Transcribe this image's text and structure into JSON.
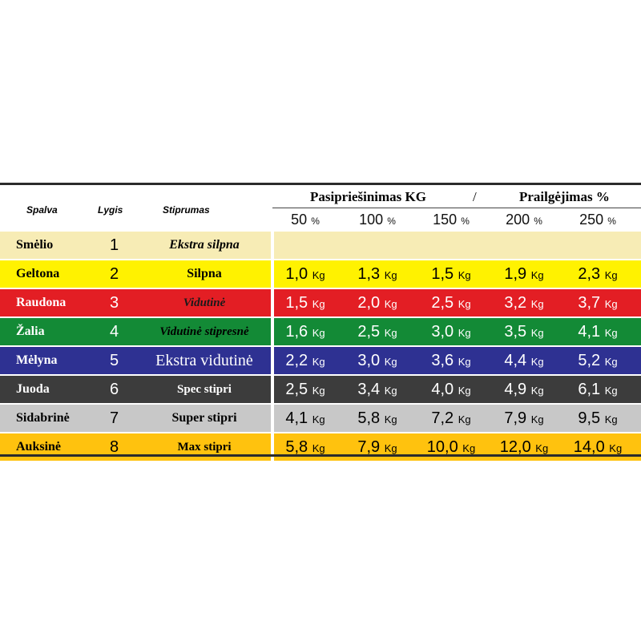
{
  "header": {
    "resistance_title": "Pasipriešinimas KG",
    "slash": "/",
    "elongation_title": "Prailgėjimas %",
    "col_color": "Spalva",
    "col_level": "Lygis",
    "col_strength": "Stiprumas",
    "percentages": [
      {
        "num": "50",
        "unit": "%"
      },
      {
        "num": "100",
        "unit": "%"
      },
      {
        "num": "150",
        "unit": "%"
      },
      {
        "num": "200",
        "unit": "%"
      },
      {
        "num": "250",
        "unit": "%"
      }
    ]
  },
  "rows": [
    {
      "color": "Smėlio",
      "level": "1",
      "strength": "Ekstra silpna",
      "bg": "#f7ecb5",
      "fg": "#000000",
      "values": []
    },
    {
      "color": "Geltona",
      "level": "2",
      "strength": "Silpna",
      "bg": "#fff200",
      "fg": "#000000",
      "values": [
        {
          "n": "1,0",
          "u": "Kg"
        },
        {
          "n": "1,3",
          "u": "Kg"
        },
        {
          "n": "1,5",
          "u": "Kg"
        },
        {
          "n": "1,9",
          "u": "Kg"
        },
        {
          "n": "2,3",
          "u": "Kg"
        }
      ]
    },
    {
      "color": "Raudona",
      "level": "3",
      "strength": "Vidutinė",
      "bg": "#e31e24",
      "fg": "#ffffff",
      "values": [
        {
          "n": "1,5",
          "u": "Kg"
        },
        {
          "n": "2,0",
          "u": "Kg"
        },
        {
          "n": "2,5",
          "u": "Kg"
        },
        {
          "n": "3,2",
          "u": "Kg"
        },
        {
          "n": "3,7",
          "u": "Kg"
        }
      ]
    },
    {
      "color": "Žalia",
      "level": "4",
      "strength": "Vidutinė stipresnė",
      "bg": "#138a36",
      "fg": "#ffffff",
      "values": [
        {
          "n": "1,6",
          "u": "Kg"
        },
        {
          "n": "2,5",
          "u": "Kg"
        },
        {
          "n": "3,0",
          "u": "Kg"
        },
        {
          "n": "3,5",
          "u": "Kg"
        },
        {
          "n": "4,1",
          "u": "Kg"
        }
      ]
    },
    {
      "color": "Mėlyna",
      "level": "5",
      "strength": "Ekstra vidutinė",
      "bg": "#2e3192",
      "fg": "#ffffff",
      "values": [
        {
          "n": "2,2",
          "u": "Kg"
        },
        {
          "n": "3,0",
          "u": "Kg"
        },
        {
          "n": "3,6",
          "u": "Kg"
        },
        {
          "n": "4,4",
          "u": "Kg"
        },
        {
          "n": "5,2",
          "u": "Kg"
        }
      ]
    },
    {
      "color": "Juoda",
      "level": "6",
      "strength": "Spec stipri",
      "bg": "#3c3c3c",
      "fg": "#ffffff",
      "values": [
        {
          "n": "2,5",
          "u": "Kg"
        },
        {
          "n": "3,4",
          "u": "Kg"
        },
        {
          "n": "4,0",
          "u": "Kg"
        },
        {
          "n": "4,9",
          "u": "Kg"
        },
        {
          "n": "6,1",
          "u": "Kg"
        }
      ]
    },
    {
      "color": "Sidabrinė",
      "level": "7",
      "strength": "Super stipri",
      "bg": "#c8c8c8",
      "fg": "#000000",
      "values": [
        {
          "n": "4,1",
          "u": "Kg"
        },
        {
          "n": "5,8",
          "u": "Kg"
        },
        {
          "n": "7,2",
          "u": "Kg"
        },
        {
          "n": "7,9",
          "u": "Kg"
        },
        {
          "n": "9,5",
          "u": "Kg"
        }
      ]
    },
    {
      "color": "Auksinė",
      "level": "8",
      "strength": "Max stipri",
      "bg": "#ffc20e",
      "fg": "#000000",
      "values": [
        {
          "n": "5,8",
          "u": "Kg"
        },
        {
          "n": "7,9",
          "u": "Kg"
        },
        {
          "n": "10,0",
          "u": "Kg"
        },
        {
          "n": "12,0",
          "u": "Kg"
        },
        {
          "n": "14,0",
          "u": "Kg"
        }
      ]
    }
  ]
}
